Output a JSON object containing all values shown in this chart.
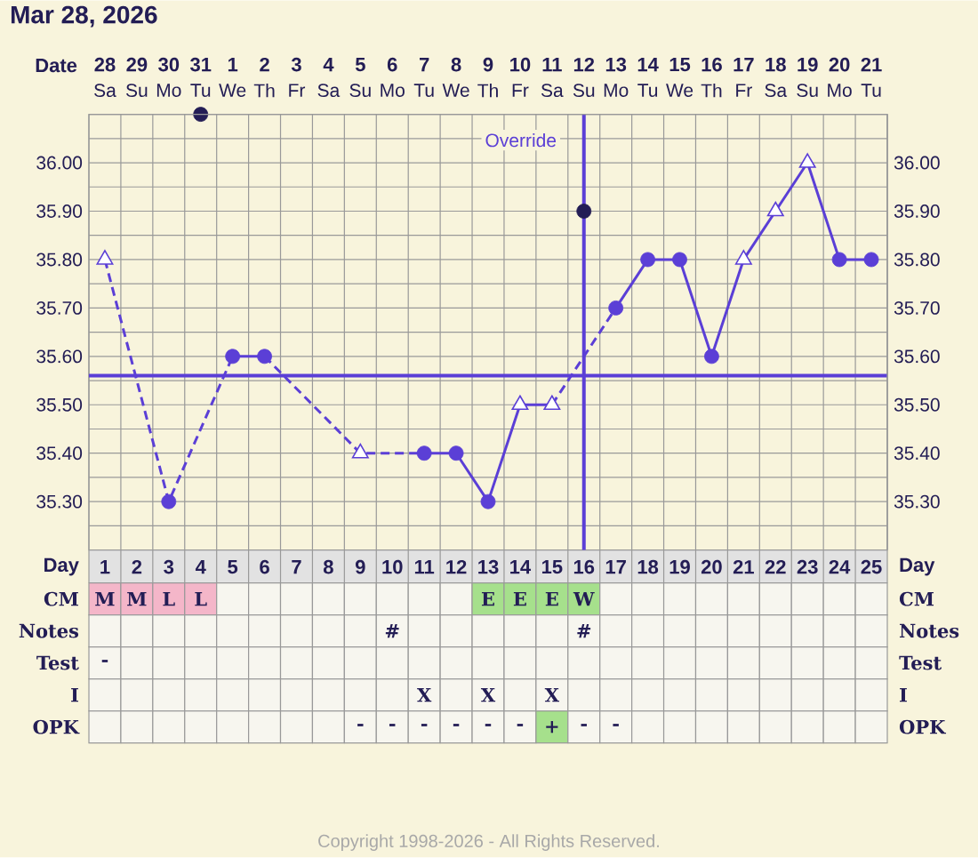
{
  "chart_data": [
    {
      "type": "line",
      "title": "Mar 28, 2026",
      "xlabel": "Day",
      "categories": [
        "1",
        "2",
        "3",
        "4",
        "5",
        "6",
        "7",
        "8",
        "9",
        "10",
        "11",
        "12",
        "13",
        "14",
        "15",
        "16",
        "17",
        "18",
        "19",
        "20",
        "21",
        "22",
        "23",
        "24",
        "25"
      ],
      "series": [
        {
          "type": "line",
          "color": "#5b3fd6",
          "marker": "none",
          "line_style": "dashed",
          "values": [
            35.8,
            null,
            35.3,
            null,
            35.6,
            null,
            null,
            null,
            null,
            null,
            null,
            null,
            null,
            null,
            null,
            null,
            null,
            null,
            null,
            null,
            null,
            null,
            null,
            null,
            null
          ]
        },
        {
          "color": "#5b3fd6",
          "marker": "none",
          "line_style": "dashed",
          "values": [
            null,
            null,
            null,
            null,
            null,
            35.6,
            null,
            null,
            35.4,
            null,
            35.4,
            null,
            null,
            null,
            null,
            null,
            null,
            null,
            null,
            null,
            null,
            null,
            null,
            null,
            null
          ]
        },
        {
          "color": "#5b3fd6",
          "marker": "none",
          "line_style": "dashed",
          "values": [
            null,
            null,
            null,
            null,
            null,
            null,
            null,
            null,
            null,
            null,
            null,
            null,
            null,
            null,
            35.5,
            null,
            35.7,
            null,
            null,
            null,
            null,
            null,
            null,
            null,
            null
          ]
        },
        {
          "color": "#5b3fd6",
          "marker": "none",
          "line_style": "solid",
          "values": [
            null,
            null,
            null,
            null,
            35.6,
            35.6,
            null,
            null,
            null,
            null,
            null,
            null,
            null,
            null,
            null,
            null,
            null,
            null,
            null,
            null,
            null,
            null,
            null,
            null,
            null
          ]
        },
        {
          "color": "#5b3fd6",
          "marker": "none",
          "line_style": "solid",
          "values": [
            null,
            null,
            null,
            null,
            null,
            null,
            null,
            null,
            null,
            null,
            35.4,
            35.4,
            35.3,
            35.5,
            35.5,
            null,
            null,
            null,
            null,
            null,
            null,
            null,
            null,
            null,
            null
          ]
        },
        {
          "color": "#5b3fd6",
          "marker": "none",
          "line_style": "solid",
          "values": [
            null,
            null,
            null,
            null,
            null,
            null,
            null,
            null,
            null,
            null,
            null,
            null,
            null,
            null,
            null,
            null,
            35.7,
            35.8,
            35.8,
            35.6,
            35.8,
            35.9,
            36.0,
            35.8,
            35.8
          ]
        },
        {
          "type": "scatter",
          "color": "#5b3fd6",
          "marker": "circle",
          "values": [
            null,
            null,
            35.3,
            null,
            35.6,
            35.6,
            null,
            null,
            null,
            null,
            35.4,
            35.4,
            35.3,
            null,
            null,
            null,
            35.7,
            35.8,
            35.8,
            35.6,
            null,
            null,
            null,
            35.8,
            35.8
          ]
        },
        {
          "type": "scatter",
          "color": "#5b3fd6",
          "marker": "triangle",
          "values": [
            35.8,
            null,
            null,
            null,
            null,
            null,
            null,
            null,
            35.4,
            null,
            null,
            null,
            null,
            35.5,
            35.5,
            null,
            null,
            null,
            null,
            null,
            35.8,
            35.9,
            36.0,
            null,
            null
          ]
        },
        {
          "type": "scatter",
          "color": "#231d55",
          "marker": "circle",
          "values": [
            null,
            null,
            null,
            36.1,
            null,
            null,
            null,
            null,
            null,
            null,
            null,
            null,
            null,
            null,
            null,
            35.9,
            null,
            null,
            null,
            null,
            null,
            null,
            null,
            null,
            null
          ]
        }
      ],
      "ylim": [
        35.2,
        36.1
      ],
      "yticks": [
        {
          "value": 35.25,
          "label": null
        },
        {
          "value": 35.3,
          "label": "35.30"
        },
        {
          "value": 35.35,
          "label": null
        },
        {
          "value": 35.4,
          "label": "35.40"
        },
        {
          "value": 35.45,
          "label": null
        },
        {
          "value": 35.5,
          "label": "35.50"
        },
        {
          "value": 35.55,
          "label": null
        },
        {
          "value": 35.6,
          "label": "35.60"
        },
        {
          "value": 35.65,
          "label": null
        },
        {
          "value": 35.7,
          "label": "35.70"
        },
        {
          "value": 35.75,
          "label": null
        },
        {
          "value": 35.8,
          "label": "35.80"
        },
        {
          "value": 35.85,
          "label": null
        },
        {
          "value": 35.9,
          "label": "35.90"
        },
        {
          "value": 35.95,
          "label": null
        },
        {
          "value": 36.0,
          "label": "36.00"
        },
        {
          "value": 36.05,
          "label": null
        }
      ],
      "y2lim": [
        35.2,
        36.1
      ],
      "y2ticks": [
        {
          "value": 35.3,
          "label": "35.30"
        },
        {
          "value": 35.4,
          "label": "35.40"
        },
        {
          "value": 35.5,
          "label": "35.50"
        },
        {
          "value": 35.6,
          "label": "35.60"
        },
        {
          "value": 35.7,
          "label": "35.70"
        },
        {
          "value": 35.8,
          "label": "35.80"
        },
        {
          "value": 35.9,
          "label": "35.90"
        },
        {
          "value": 36.0,
          "label": "36.00"
        }
      ],
      "grid": true,
      "x2label": "Date",
      "x2lim": [
        "2026-03-27T12:00",
        "2026-04-21T12:00"
      ],
      "x2ticks": [
        {
          "value": "2026-03-28",
          "label": "28"
        },
        {
          "value": "2026-03-29",
          "label": "29"
        },
        {
          "value": "2026-03-30",
          "label": "30"
        },
        {
          "value": "2026-03-31",
          "label": "31"
        },
        {
          "value": "2026-04-01",
          "label": "1"
        },
        {
          "value": "2026-04-02",
          "label": "2"
        },
        {
          "value": "2026-04-03",
          "label": "3"
        },
        {
          "value": "2026-04-04",
          "label": "4"
        },
        {
          "value": "2026-04-05",
          "label": "5"
        },
        {
          "value": "2026-04-06",
          "label": "6"
        },
        {
          "value": "2026-04-07",
          "label": "7"
        },
        {
          "value": "2026-04-08",
          "label": "8"
        },
        {
          "value": "2026-04-09",
          "label": "9"
        },
        {
          "value": "2026-04-10",
          "label": "10"
        },
        {
          "value": "2026-04-11",
          "label": "11"
        },
        {
          "value": "2026-04-12",
          "label": "12"
        },
        {
          "value": "2026-04-13",
          "label": "13"
        },
        {
          "value": "2026-04-14",
          "label": "14"
        },
        {
          "value": "2026-04-15",
          "label": "15"
        },
        {
          "value": "2026-04-16",
          "label": "16"
        },
        {
          "value": "2026-04-17",
          "label": "17"
        },
        {
          "value": "2026-04-18",
          "label": "18"
        },
        {
          "value": "2026-04-19",
          "label": "19"
        },
        {
          "value": "2026-04-20",
          "label": "20"
        },
        {
          "value": "2026-04-21",
          "label": "21"
        }
      ],
      "ref_lines": [
        {
          "axis": "y",
          "value": 35.56,
          "label": null,
          "color": "#5b3fd6"
        },
        {
          "axis": "x",
          "value": "16",
          "label": "Override",
          "color": "#5b3fd6"
        }
      ],
      "annotations": [
        "Copyright 1998-2026 - All Rights Reserved."
      ]
    },
    {
      "type": "other",
      "cell_labels": [
        [
          "Sa",
          "Su",
          "Mo",
          "Tu",
          "We",
          "Th",
          "Fr",
          "Sa",
          "Su",
          "Mo",
          "Tu",
          "We",
          "Th",
          "Fr",
          "Sa",
          "Su",
          "Mo",
          "Tu",
          "We",
          "Th",
          "Fr",
          "Sa",
          "Su",
          "Mo",
          "Tu"
        ]
      ]
    },
    {
      "type": "other",
      "y_categories": [
        "CM",
        "Notes",
        "Test",
        "I",
        "OPK"
      ],
      "y2_categories": [
        "CM",
        "Notes",
        "Test",
        "I",
        "OPK"
      ],
      "cell_labels": [
        [
          "M",
          "M",
          "L",
          "L",
          null,
          null,
          null,
          null,
          null,
          null,
          null,
          null,
          "E",
          "E",
          "E",
          "W",
          null,
          null,
          null,
          null,
          null,
          null,
          null,
          null,
          null
        ],
        [
          null,
          null,
          null,
          null,
          null,
          null,
          null,
          null,
          null,
          "#",
          null,
          null,
          null,
          null,
          null,
          "#",
          null,
          null,
          null,
          null,
          null,
          null,
          null,
          null,
          null
        ],
        [
          "-",
          null,
          null,
          null,
          null,
          null,
          null,
          null,
          null,
          null,
          null,
          null,
          null,
          null,
          null,
          null,
          null,
          null,
          null,
          null,
          null,
          null,
          null,
          null,
          null
        ],
        [
          null,
          null,
          null,
          null,
          null,
          null,
          null,
          null,
          null,
          null,
          "X",
          null,
          "X",
          null,
          "X",
          null,
          null,
          null,
          null,
          null,
          null,
          null,
          null,
          null,
          null
        ],
        [
          null,
          null,
          null,
          null,
          null,
          null,
          null,
          null,
          "-",
          "-",
          "-",
          "-",
          "-",
          "-",
          "+",
          "-",
          "-",
          null,
          null,
          null,
          null,
          null,
          null,
          null,
          null
        ]
      ],
      "colors": [
        [
          "#f4b6c9",
          "#f4b6c9",
          "#f4b6c9",
          "#f4b6c9",
          null,
          null,
          null,
          null,
          null,
          null,
          null,
          null,
          "#a6e08c",
          "#a6e08c",
          "#a6e08c",
          "#a6e08c",
          null,
          null,
          null,
          null,
          null,
          null,
          null,
          null,
          null
        ],
        [
          null,
          null,
          null,
          null,
          null,
          null,
          null,
          null,
          null,
          null,
          null,
          null,
          null,
          null,
          null,
          null,
          null,
          null,
          null,
          null,
          null,
          null,
          null,
          null,
          null
        ],
        [
          null,
          null,
          null,
          null,
          null,
          null,
          null,
          null,
          null,
          null,
          null,
          null,
          null,
          null,
          null,
          null,
          null,
          null,
          null,
          null,
          null,
          null,
          null,
          null,
          null
        ],
        [
          null,
          null,
          null,
          null,
          null,
          null,
          null,
          null,
          null,
          null,
          null,
          null,
          null,
          null,
          null,
          null,
          null,
          null,
          null,
          null,
          null,
          null,
          null,
          null,
          null
        ],
        [
          null,
          null,
          null,
          null,
          null,
          null,
          null,
          null,
          null,
          null,
          null,
          null,
          null,
          null,
          "#a6e08c",
          null,
          null,
          null,
          null,
          null,
          null,
          null,
          null,
          null,
          null
        ]
      ]
    }
  ]
}
